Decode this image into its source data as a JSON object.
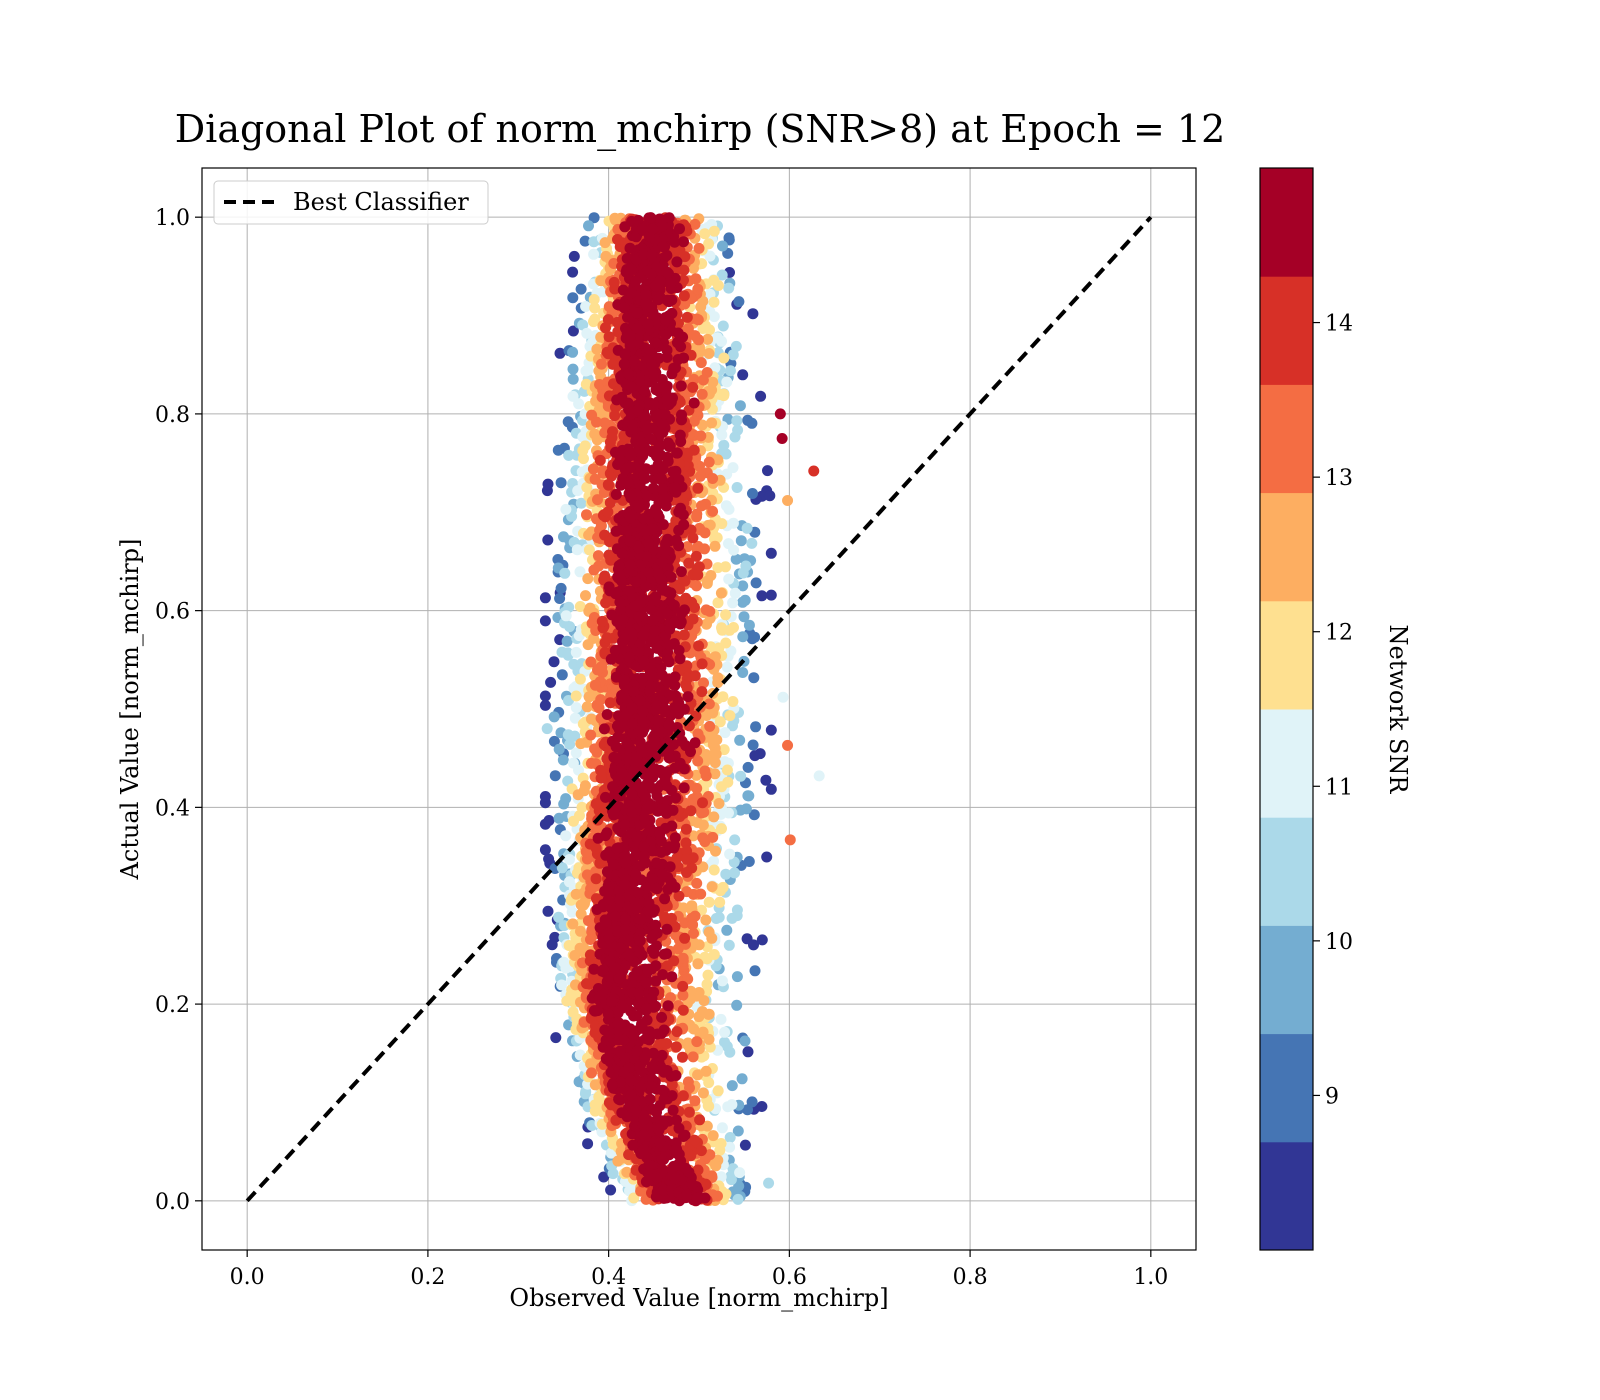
{
  "chart_data": {
    "type": "scatter",
    "title": "Diagonal Plot of norm_mchirp (SNR>8) at Epoch = 12",
    "xlabel": "Observed Value [norm_mchirp]",
    "ylabel": "Actual Value [norm_mchirp]",
    "xlim": [
      -0.05,
      1.05
    ],
    "ylim": [
      -0.05,
      1.05
    ],
    "xticks": [
      "0.0",
      "0.2",
      "0.4",
      "0.6",
      "0.8",
      "1.0"
    ],
    "yticks": [
      "0.0",
      "0.2",
      "0.4",
      "0.6",
      "0.8",
      "1.0"
    ],
    "grid": true,
    "legend": {
      "placement": "upper-left",
      "entries": [
        "Best Classifier"
      ]
    },
    "reference_line": {
      "name": "Best Classifier",
      "style": "dashed",
      "color": "#000000",
      "x": [
        0.0,
        1.0
      ],
      "y": [
        0.0,
        1.0
      ]
    },
    "colorbar": {
      "label": "Network SNR",
      "range": [
        8.0,
        15.0
      ],
      "ticks": [
        "9",
        "10",
        "11",
        "12",
        "13",
        "14"
      ],
      "colors": [
        "#313695",
        "#4575b4",
        "#74add1",
        "#abd9e9",
        "#e0f3f8",
        "#fee090",
        "#fdae61",
        "#f46d43",
        "#d73027",
        "#a50026"
      ]
    },
    "scatter_summary": {
      "color_by": "Network SNR",
      "cloud_profile": [
        {
          "y": 0.0,
          "x_min": 0.4,
          "x_max": 0.56,
          "x_core": 0.48
        },
        {
          "y": 0.1,
          "x_min": 0.36,
          "x_max": 0.57,
          "x_core": 0.43
        },
        {
          "y": 0.2,
          "x_min": 0.33,
          "x_max": 0.57,
          "x_core": 0.41
        },
        {
          "y": 0.3,
          "x_min": 0.33,
          "x_max": 0.57,
          "x_core": 0.42
        },
        {
          "y": 0.4,
          "x_min": 0.33,
          "x_max": 0.58,
          "x_core": 0.43
        },
        {
          "y": 0.5,
          "x_min": 0.33,
          "x_max": 0.58,
          "x_core": 0.44
        },
        {
          "y": 0.6,
          "x_min": 0.33,
          "x_max": 0.58,
          "x_core": 0.44
        },
        {
          "y": 0.7,
          "x_min": 0.33,
          "x_max": 0.58,
          "x_core": 0.44
        },
        {
          "y": 0.8,
          "x_min": 0.34,
          "x_max": 0.57,
          "x_core": 0.44
        },
        {
          "y": 0.9,
          "x_min": 0.35,
          "x_max": 0.56,
          "x_core": 0.44
        },
        {
          "y": 1.0,
          "x_min": 0.37,
          "x_max": 0.54,
          "x_core": 0.45
        }
      ],
      "outliers": [
        {
          "x": 0.627,
          "y": 0.742,
          "snr": 14.2
        },
        {
          "x": 0.633,
          "y": 0.432,
          "snr": 11.3
        },
        {
          "x": 0.601,
          "y": 0.367,
          "snr": 13.6
        },
        {
          "x": 0.593,
          "y": 0.512,
          "snr": 11.2
        },
        {
          "x": 0.59,
          "y": 0.8,
          "snr": 14.8
        },
        {
          "x": 0.598,
          "y": 0.712,
          "snr": 12.6
        },
        {
          "x": 0.592,
          "y": 0.775,
          "snr": 14.3
        },
        {
          "x": 0.598,
          "y": 0.463,
          "snr": 13.2
        },
        {
          "x": 0.332,
          "y": 0.48,
          "snr": 10.5
        },
        {
          "x": 0.577,
          "y": 0.018,
          "snr": 10.5
        }
      ]
    }
  }
}
